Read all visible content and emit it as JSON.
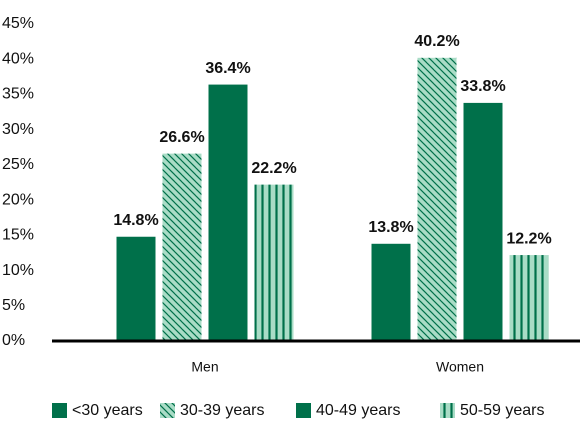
{
  "chart_data": {
    "type": "bar",
    "categories": [
      "Men",
      "Women"
    ],
    "series": [
      {
        "name": "<30 years",
        "color": "#00704a",
        "hatch": "solid",
        "values": [
          14.8,
          13.8
        ],
        "value_labels": [
          "14.8%",
          "13.8%"
        ]
      },
      {
        "name": "30-39 years",
        "color": "#a9dcc6",
        "hatch": "diagonal",
        "values": [
          26.6,
          40.2
        ],
        "value_labels": [
          "26.6%",
          "40.2%"
        ]
      },
      {
        "name": "40-49 years",
        "color": "#00704a",
        "hatch": "horizontal",
        "values": [
          36.4,
          33.8
        ],
        "value_labels": [
          "36.4%",
          "33.8%"
        ]
      },
      {
        "name": "50-59 years",
        "color": "#a9dcc6",
        "hatch": "vertical",
        "values": [
          22.2,
          12.2
        ],
        "value_labels": [
          "22.2%",
          "12.2%"
        ]
      }
    ],
    "ylim": [
      0,
      45
    ],
    "yticks": [
      {
        "value": 0,
        "label": "0%"
      },
      {
        "value": 5,
        "label": "5%"
      },
      {
        "value": 10,
        "label": "10%"
      },
      {
        "value": 15,
        "label": "15%"
      },
      {
        "value": 20,
        "label": "20%"
      },
      {
        "value": 25,
        "label": "25%"
      },
      {
        "value": 30,
        "label": "30%"
      },
      {
        "value": 35,
        "label": "35%"
      },
      {
        "value": 40,
        "label": "40%"
      },
      {
        "value": 45,
        "label": "45%"
      }
    ],
    "grid": false,
    "legend": "bottom"
  }
}
